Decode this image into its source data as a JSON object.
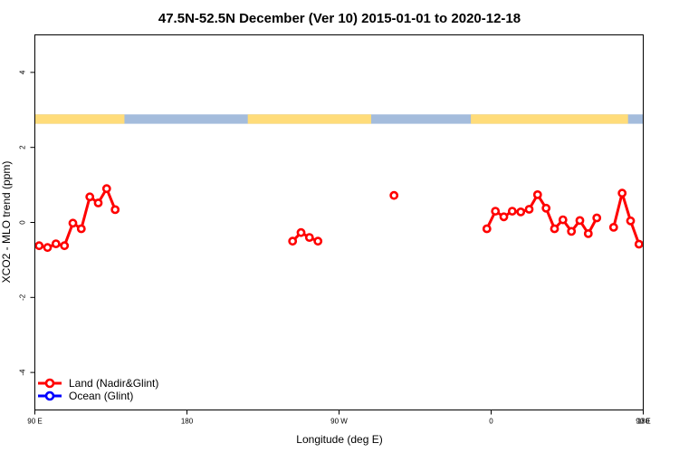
{
  "chart_data": {
    "type": "line",
    "title": "47.5N-52.5N December (Ver 10)   2015-01-01 to 2020-12-18",
    "xlabel": "Longitude (deg E)",
    "ylabel": "XCO2 - MLO trend (ppm)",
    "xlim": [
      90,
      450
    ],
    "ylim": [
      -5,
      5
    ],
    "x_ticks": [
      {
        "value": 90,
        "label": "90 E"
      },
      {
        "value": 180,
        "label": "180"
      },
      {
        "value": 270,
        "label": "90 W"
      },
      {
        "value": 360,
        "label": "0"
      },
      {
        "value": 450,
        "label": "90 E"
      },
      {
        "value": 540,
        "label": "180"
      }
    ],
    "y_ticks": [
      {
        "value": -4,
        "label": "-4"
      },
      {
        "value": -2,
        "label": "-2"
      },
      {
        "value": 0,
        "label": "0"
      },
      {
        "value": 2,
        "label": "2"
      },
      {
        "value": 4,
        "label": "4"
      }
    ],
    "grid": false,
    "legend_position": "bottom-left",
    "surface_strip": {
      "y_range": [
        2.63,
        2.88
      ],
      "land_color": "#ffdc7a",
      "ocean_color": "#a4bcdc",
      "land_segments": [
        [
          90,
          143
        ],
        [
          216,
          289
        ],
        [
          348,
          441
        ],
        [
          561,
          600
        ]
      ]
    },
    "series": [
      {
        "name": "Land (Nadir&Glint)",
        "color": "#ff0000",
        "segments": [
          [
            [
              92.5,
              -0.62
            ],
            [
              97.5,
              -0.67
            ],
            [
              102.5,
              -0.57
            ],
            [
              107.5,
              -0.62
            ],
            [
              112.5,
              -0.02
            ],
            [
              117.5,
              -0.17
            ],
            [
              122.5,
              0.68
            ],
            [
              127.5,
              0.52
            ],
            [
              132.5,
              0.9
            ],
            [
              137.5,
              0.34
            ]
          ],
          [
            [
              242.5,
              -0.5
            ],
            [
              247.5,
              -0.27
            ],
            [
              252.5,
              -0.4
            ],
            [
              257.5,
              -0.5
            ]
          ],
          [
            [
              302.5,
              0.72
            ]
          ],
          [
            [
              357.5,
              -0.17
            ],
            [
              362.5,
              0.3
            ],
            [
              367.5,
              0.15
            ],
            [
              372.5,
              0.3
            ],
            [
              377.5,
              0.28
            ],
            [
              382.5,
              0.35
            ],
            [
              387.5,
              0.74
            ],
            [
              392.5,
              0.38
            ],
            [
              397.5,
              -0.17
            ],
            [
              402.5,
              0.07
            ],
            [
              407.5,
              -0.24
            ],
            [
              412.5,
              0.05
            ],
            [
              417.5,
              -0.3
            ],
            [
              422.5,
              0.12
            ]
          ],
          [
            [
              432.5,
              -0.13
            ],
            [
              437.5,
              0.78
            ],
            [
              442.5,
              0.04
            ],
            [
              447.5,
              -0.58
            ],
            [
              452.5,
              -0.63
            ],
            [
              457.5,
              -0.67
            ],
            [
              462.5,
              -0.57
            ],
            [
              467.5,
              -0.62
            ],
            [
              472.5,
              -0.02
            ],
            [
              477.5,
              -0.17
            ],
            [
              482.5,
              0.68
            ],
            [
              487.5,
              0.52
            ],
            [
              492.5,
              0.9
            ],
            [
              497.5,
              0.34
            ]
          ]
        ]
      },
      {
        "name": "Ocean (Glint)",
        "color": "#0000ff",
        "segments": []
      }
    ],
    "legend": [
      {
        "label": "Land (Nadir&Glint)",
        "color": "#ff0000"
      },
      {
        "label": "Ocean (Glint)",
        "color": "#0000ff"
      }
    ]
  }
}
